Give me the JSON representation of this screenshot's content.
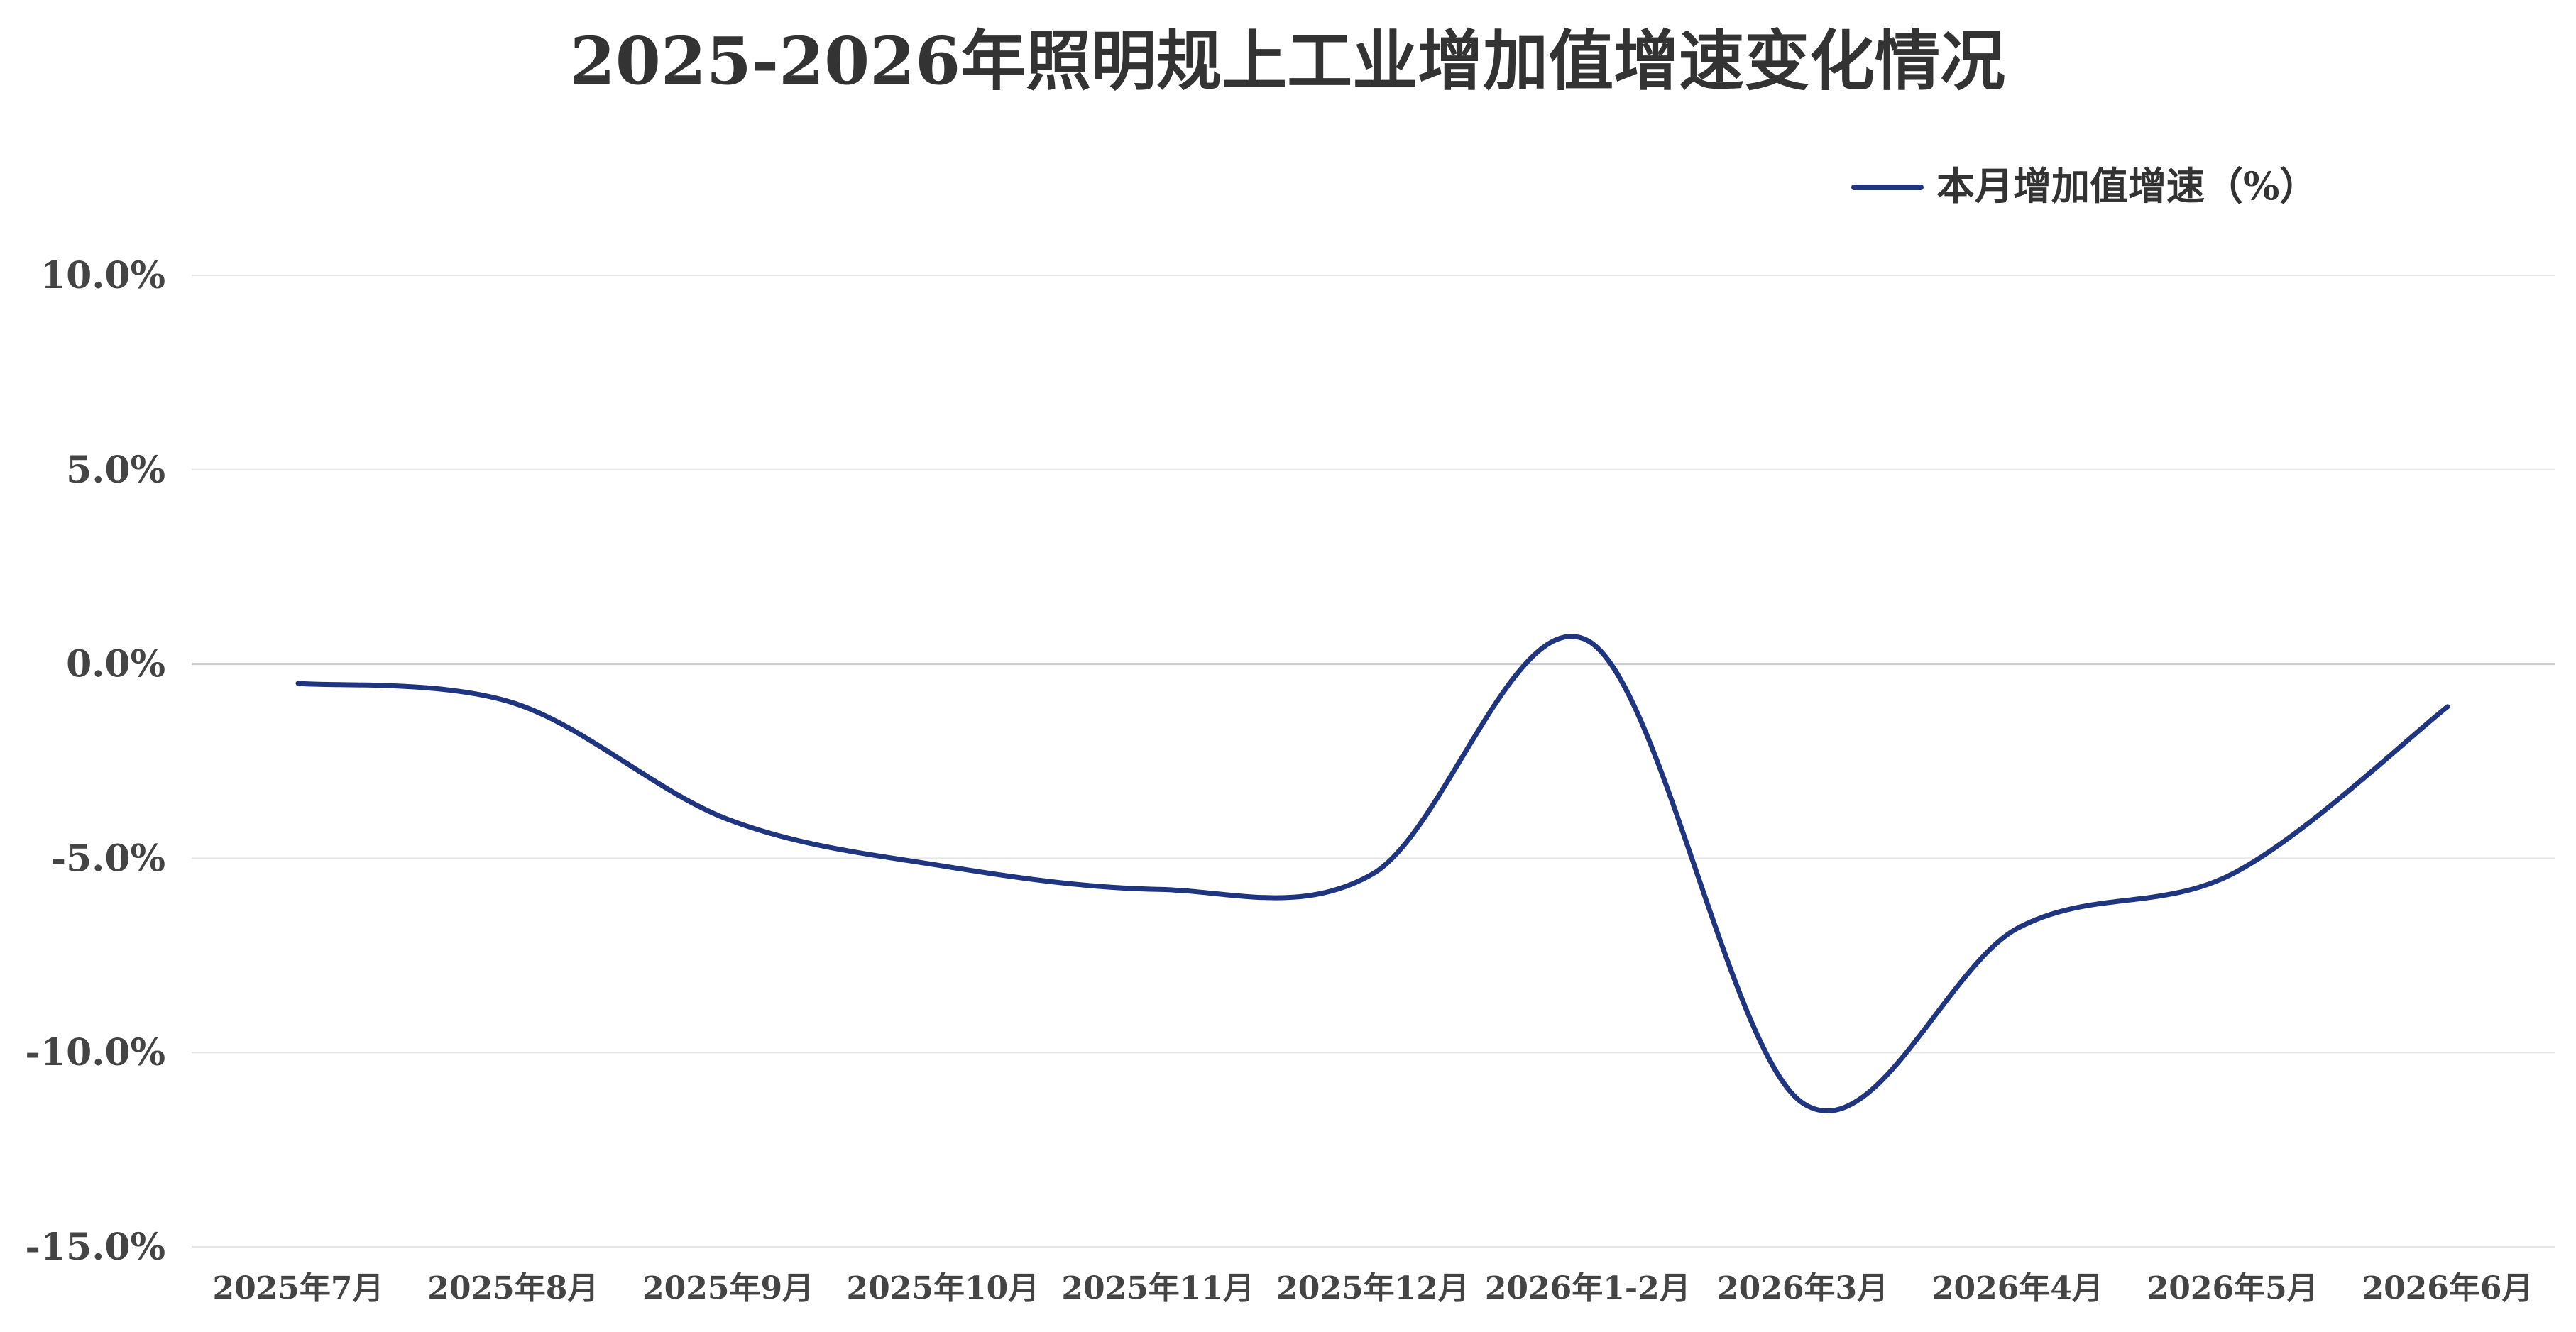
{
  "chart_data": {
    "type": "line",
    "title": "2025-2026年照明规上工业增加值增速变化情况",
    "categories": [
      "2025年7月",
      "2025年8月",
      "2025年9月",
      "2025年10月",
      "2025年11月",
      "2025年12月",
      "2026年1-2月",
      "2026年3月",
      "2026年4月",
      "2026年5月",
      "2026年6月"
    ],
    "series": [
      {
        "name": "本月增加值增速（%）",
        "values": [
          -0.5,
          -1.0,
          -4.0,
          -5.2,
          -5.8,
          -5.4,
          0.6,
          -11.3,
          -6.8,
          -5.4,
          -1.1
        ],
        "color": "#1f3580"
      }
    ],
    "ylim": [
      -15,
      10
    ],
    "yticks": [
      "10.0%",
      "5.0%",
      "0.0%",
      "-5.0%",
      "-10.0%",
      "-15.0%"
    ],
    "ytick_values": [
      10,
      5,
      0,
      -5,
      -10,
      -15
    ],
    "grid": true,
    "legend_position": "top-right",
    "colors": {
      "grid": "#e6e6e6",
      "zero_line": "#cccccc",
      "axis_text": "#444444"
    }
  }
}
